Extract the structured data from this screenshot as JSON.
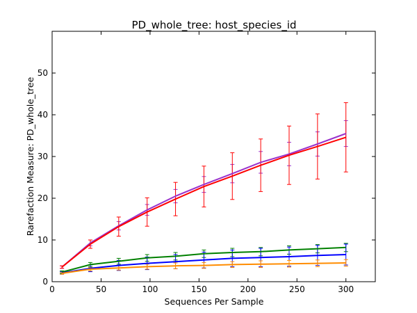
{
  "chart_data": {
    "type": "line",
    "title": "PD_whole_tree: host_species_id",
    "xlabel": "Sequences Per Sample",
    "ylabel": "Rarefaction Measure: PD_whole_tree",
    "xlim": [
      0,
      330
    ],
    "ylim": [
      0,
      60
    ],
    "xticks": [
      0,
      50,
      100,
      150,
      200,
      250,
      300
    ],
    "yticks": [
      0,
      10,
      20,
      30,
      40,
      50
    ],
    "grid": false,
    "legend": "none",
    "x": [
      10,
      39,
      68,
      97,
      126,
      155,
      184,
      213,
      242,
      271,
      300
    ],
    "series": [
      {
        "color": "#9932cc",
        "values": [
          3.5,
          9.3,
          13.4,
          17.2,
          20.5,
          23.3,
          25.9,
          28.6,
          30.6,
          33.0,
          35.5
        ],
        "errors": [
          0.3,
          0.7,
          1.0,
          1.3,
          1.6,
          1.9,
          2.2,
          2.6,
          2.8,
          2.9,
          3.1
        ]
      },
      {
        "color": "#ff0000",
        "values": [
          3.5,
          9.0,
          13.2,
          16.7,
          19.8,
          22.8,
          25.3,
          27.9,
          30.3,
          32.4,
          34.6
        ],
        "errors": [
          0.3,
          1.0,
          2.3,
          3.4,
          4.0,
          4.9,
          5.6,
          6.3,
          7.0,
          7.8,
          8.3
        ]
      },
      {
        "color": "#008000",
        "values": [
          2.3,
          4.1,
          4.9,
          5.7,
          6.1,
          6.7,
          7.0,
          7.2,
          7.6,
          7.9,
          8.2
        ],
        "errors": [
          0.3,
          0.5,
          0.7,
          0.8,
          0.9,
          0.9,
          1.0,
          1.0,
          1.0,
          1.0,
          1.0
        ]
      },
      {
        "color": "#0000ff",
        "values": [
          2.1,
          3.2,
          3.9,
          4.4,
          4.8,
          5.2,
          5.6,
          5.8,
          6.0,
          6.3,
          6.5
        ],
        "errors": [
          0.3,
          0.8,
          1.2,
          1.5,
          1.7,
          1.9,
          2.0,
          2.2,
          2.3,
          2.4,
          2.5
        ]
      },
      {
        "color": "#ff8c00",
        "values": [
          2.0,
          3.0,
          3.3,
          3.6,
          3.8,
          3.9,
          4.1,
          4.2,
          4.3,
          4.4,
          4.5
        ],
        "errors": [
          0.2,
          0.4,
          0.5,
          0.6,
          0.7,
          0.7,
          0.7,
          0.8,
          0.8,
          0.8,
          0.8
        ]
      }
    ]
  }
}
